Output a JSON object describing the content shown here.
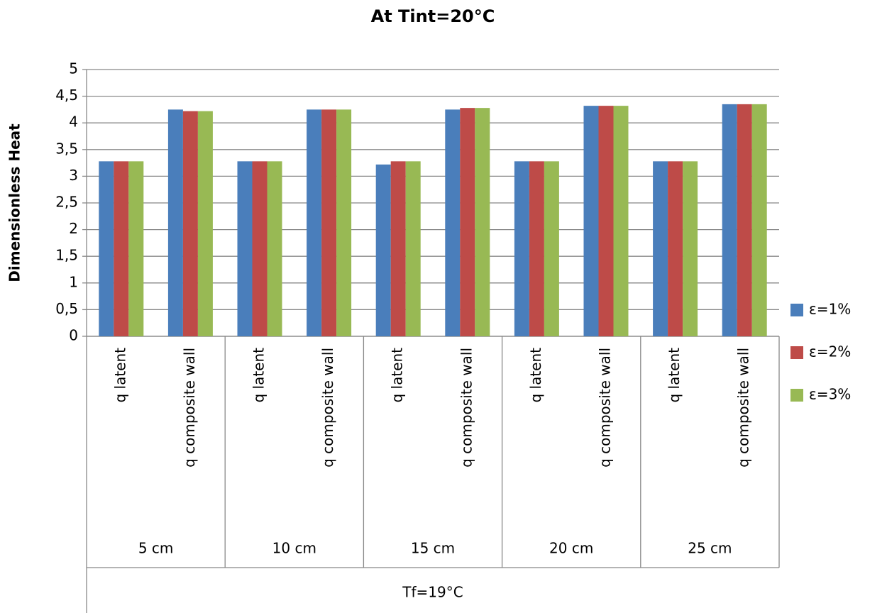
{
  "chart_data": {
    "type": "bar",
    "title": "At Tint=20°C",
    "y_label": "Dimensionless Heat",
    "x_label": "Tf=19°C",
    "categories": [
      "q latent",
      "q composite  wall",
      "q latent",
      "q composite  wall",
      "q latent",
      "q composite  wall",
      "q latent",
      "q composite  wall",
      "q latent",
      "q composite  wall"
    ],
    "groups": [
      "5 cm",
      "10 cm",
      "15 cm",
      "20 cm",
      "25 cm"
    ],
    "series": [
      {
        "name": "ε=1%",
        "color": "#4a7ebb",
        "values": [
          3.28,
          4.25,
          3.28,
          4.25,
          3.22,
          4.25,
          3.28,
          4.32,
          3.28,
          4.35
        ]
      },
      {
        "name": "ε=2%",
        "color": "#be4b48",
        "values": [
          3.28,
          4.22,
          3.28,
          4.25,
          3.28,
          4.28,
          3.28,
          4.32,
          3.28,
          4.35
        ]
      },
      {
        "name": "ε=3%",
        "color": "#98b954",
        "values": [
          3.28,
          4.22,
          3.28,
          4.25,
          3.28,
          4.28,
          3.28,
          4.32,
          3.28,
          4.35
        ]
      }
    ],
    "ylim": [
      0,
      5
    ],
    "yticks": [
      0,
      {
        "value": 0.5,
        "label": "0,5"
      },
      1,
      {
        "value": 1.5,
        "label": "1,5"
      },
      2,
      {
        "value": 2.5,
        "label": "2,5"
      },
      3,
      {
        "value": 3.5,
        "label": "3,5"
      },
      4,
      {
        "value": 4.5,
        "label": "4,5"
      },
      5
    ],
    "grid": true,
    "legend": "right"
  }
}
